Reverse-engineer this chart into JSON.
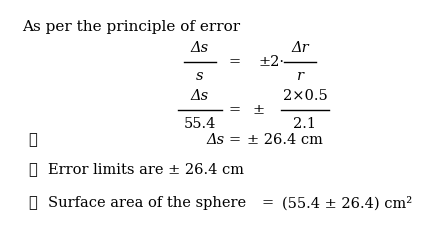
{
  "background_color": "#ffffff",
  "title_text": "As per the principle of error",
  "text_color": "#000000",
  "fontsize": 10.5,
  "title_fontsize": 11.0,
  "line1": {
    "lhs_num": "Δs",
    "lhs_den": "s",
    "eq": "=",
    "prefix": "±2·",
    "rhs_num": "Δr",
    "rhs_den": "r"
  },
  "line2": {
    "lhs_num": "Δs",
    "lhs_den": "55.4",
    "eq": "=",
    "prefix": "±",
    "rhs_num": "2×0.5",
    "rhs_den": "2.1"
  },
  "line3": {
    "therefore": "∴",
    "lhs": "Δs",
    "eq": "=",
    "rhs": "± 26.4 cm"
  },
  "line4": {
    "therefore": "∴",
    "text": "Error limits are ± 26.4 cm"
  },
  "line5": {
    "therefore": "∴",
    "lhs": "Surface area of the sphere",
    "eq": "=",
    "rhs": "(55.4 ± 26.4) cm²"
  }
}
